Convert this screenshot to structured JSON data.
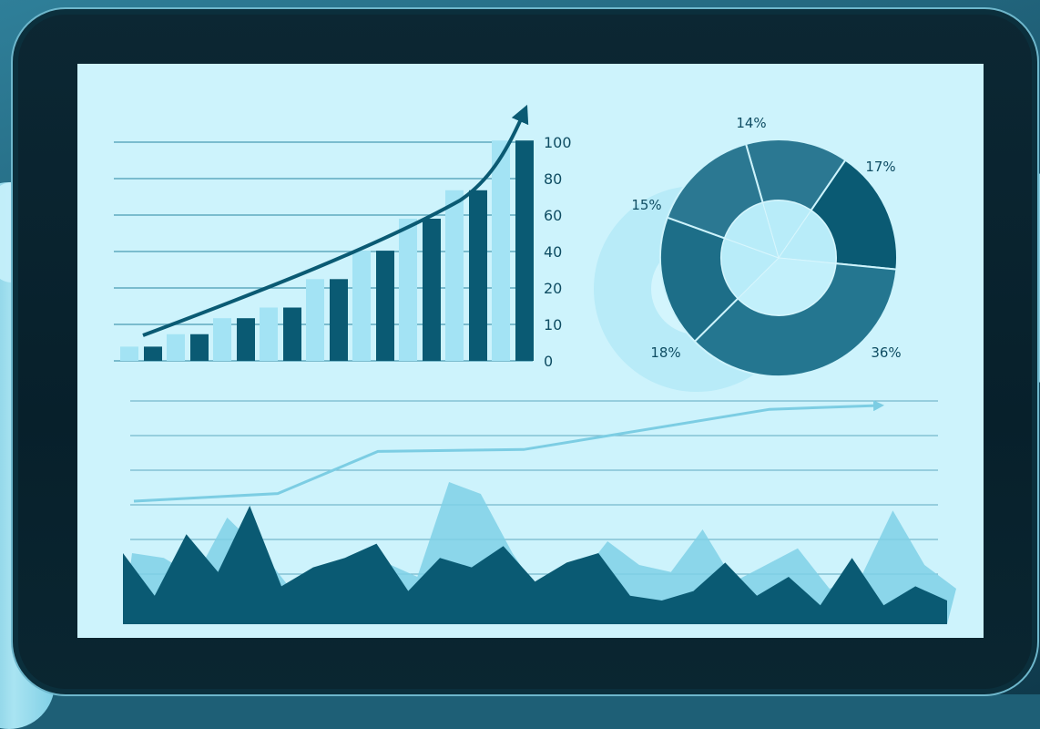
{
  "colors": {
    "screen": "#cdf3fc",
    "dark": "#0a5a73",
    "mid": "#2b7892",
    "light": "#a3e3f4",
    "pale": "#b8ebf8",
    "grid": "#5fa9bf"
  },
  "chart_data": [
    {
      "type": "bar",
      "y_tick_labels": [
        "100",
        "80",
        "60",
        "40",
        "20",
        "10",
        "0"
      ],
      "series": [
        {
          "values": [
            4,
            7.5,
            12,
            15,
            23,
            31,
            40,
            48,
            62
          ]
        },
        {
          "values": [
            4,
            7.5,
            12,
            15,
            23,
            31,
            40,
            48,
            62
          ]
        }
      ],
      "trend_arrow": "up",
      "grid": true
    },
    {
      "type": "pie",
      "style": "donut",
      "slices": [
        {
          "label": "14%",
          "value": 14
        },
        {
          "label": "17%",
          "value": 17
        },
        {
          "label": "36%",
          "value": 36
        },
        {
          "label": "18%",
          "value": 18
        },
        {
          "label": "15%",
          "value": 15
        }
      ]
    },
    {
      "type": "area",
      "x": [
        0,
        1,
        2,
        3,
        4,
        5,
        6,
        7,
        8,
        9,
        10,
        11,
        12,
        13,
        14,
        15,
        16,
        17,
        18,
        19,
        20,
        21,
        22,
        23,
        24,
        25,
        26
      ],
      "series": [
        {
          "values": [
            30,
            28,
            20,
            45,
            32,
            15,
            22,
            28,
            26,
            20,
            60,
            55,
            30,
            10,
            18,
            35,
            25,
            22,
            40,
            18,
            25,
            32,
            15,
            20,
            48,
            25,
            15
          ]
        },
        {
          "values": [
            30,
            12,
            38,
            22,
            50,
            16,
            24,
            28,
            34,
            14,
            28,
            24,
            33,
            18,
            26,
            30,
            12,
            10,
            14,
            26,
            12,
            20,
            8,
            28,
            8,
            16,
            10
          ]
        }
      ],
      "trend_line": [
        0.5,
        0.54,
        0.76,
        0.77,
        0.98
      ],
      "grid": true
    }
  ]
}
